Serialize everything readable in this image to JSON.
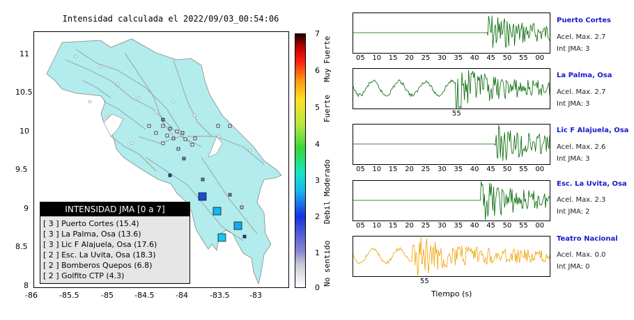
{
  "map": {
    "title": "Intensidad calculada el 2022/09/03_00:54:06",
    "x_ticks": [
      "-86",
      "-85.5",
      "-85",
      "-84.5",
      "-84",
      "-83.5",
      "-83"
    ],
    "y_ticks": [
      "11",
      "10.5",
      "10",
      "9.5",
      "9",
      "8.5",
      "8"
    ],
    "land_color": "#b2ecec",
    "lines_color": "#9a9a9a"
  },
  "legend": {
    "heading": "INTENSIDAD JMA [0 a 7]",
    "rows": [
      "[ 3 ]  Puerto Cortes (15.4)",
      "[ 3 ]  La Palma, Osa (13.6)",
      "[ 3 ]  Lic F Alajuela, Osa (17.6)",
      "[ 2 ]  Esc. La Uvita, Osa (18.3)",
      "[ 2 ]  Bomberos Quepos (6.8)",
      "[ 2 ]  Golfito CTP (4.3)"
    ]
  },
  "colorbar": {
    "ticks": [
      "7",
      "6",
      "5",
      "4",
      "3",
      "2",
      "1",
      "0"
    ],
    "labels": [
      "Muy Fuerte",
      "Fuerte",
      "Moderado",
      "Debil",
      "No sentido"
    ]
  },
  "traces": [
    {
      "name": "Puerto Cortes",
      "acel": "Acel. Max. 2.7",
      "intensity": "Int JMA: 3",
      "color": "#006400",
      "ticks": [
        "05",
        "10",
        "15",
        "20",
        "25",
        "30",
        "35",
        "40",
        "45",
        "50",
        "55",
        "00"
      ]
    },
    {
      "name": "La Palma, Osa",
      "acel": "Acel. Max. 2.7",
      "intensity": "Int JMA: 3",
      "color": "#006400",
      "ticks": [
        "55"
      ]
    },
    {
      "name": "Lic F Alajuela, Osa",
      "acel": "Acel. Max. 2.6",
      "intensity": "Int JMA: 3",
      "color": "#006400",
      "ticks": [
        "05",
        "10",
        "15",
        "20",
        "25",
        "30",
        "35",
        "40",
        "45",
        "50",
        "55",
        "00"
      ]
    },
    {
      "name": "Esc. La Uvita, Osa",
      "acel": "Acel. Max. 2.3",
      "intensity": "Int JMA: 2",
      "color": "#006400",
      "ticks": [
        "05",
        "10",
        "15",
        "20",
        "25",
        "30",
        "35",
        "40",
        "45",
        "50",
        "55",
        "00"
      ]
    },
    {
      "name": "Teatro Nacional",
      "acel": "Acel. Max. 0.0",
      "intensity": "Int JMA: 0",
      "color": "#f0a000",
      "ticks": [
        "55"
      ]
    }
  ],
  "time_axis_label": "Tiempo (s)"
}
